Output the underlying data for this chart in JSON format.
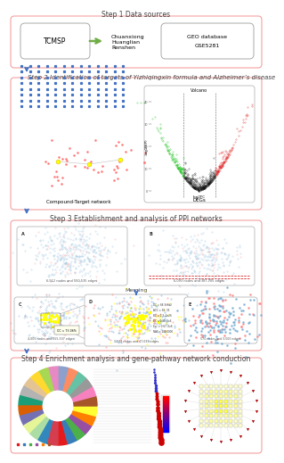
{
  "step1_label": "Step 1 Data sources",
  "step2_label": "Step 2 Identification of targets of Yizhiqingxin formula and Alzheimer’s disease",
  "step3_label": "Step 3 Establishment and analysis of PPI networks",
  "step4_label": "Step 4 Enrichment analysis and gene-pathway network conduction",
  "tcmsp_text": "TCMSP",
  "herbs_text": "Chuanxiong\nHuanglian\nRenshen",
  "geo_text": "GEO database\nGSE5281",
  "compound_label": "Compound-Target network",
  "degs_label": "DEGs",
  "volcano_label": "Volcano",
  "merging_label": "Merging",
  "pink_edge": "#f4a0a0",
  "arrow_blue": "#4472c4",
  "green_arrow": "#70ad47",
  "bg_color": "#ffffff",
  "text_color": "#404040",
  "gray_edge": "#aaaaaa",
  "node_blue": "#7bafd4",
  "node_red": "#ff6666",
  "node_yellow": "#ffff00"
}
